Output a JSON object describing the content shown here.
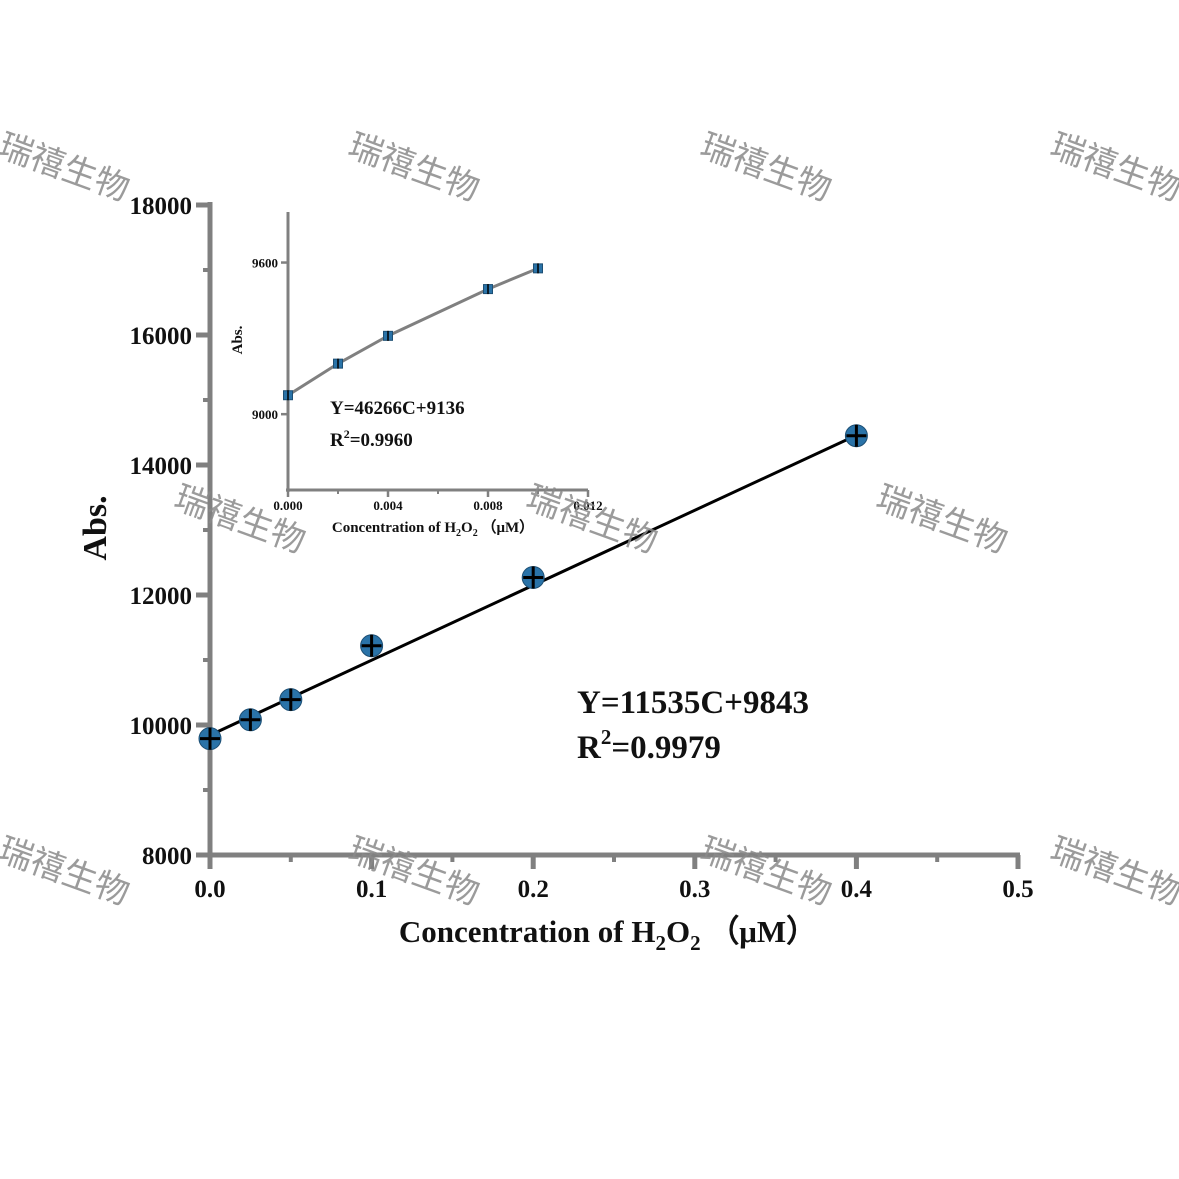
{
  "watermark": {
    "text": "瑞禧生物",
    "color": "#8a8a8a"
  },
  "chart_data": [
    {
      "type": "scatter",
      "title": "",
      "xlabel": "Concentration of H2O2 (μM)",
      "xlabel_parts": [
        "Concentration of H",
        "2",
        "O",
        "2",
        "（μM）"
      ],
      "ylabel": "Abs.",
      "xlim": [
        0,
        0.5
      ],
      "ylim": [
        8000,
        18000
      ],
      "x_ticks": [
        0,
        0.1,
        0.2,
        0.3,
        0.4,
        0.5
      ],
      "x_tick_labels": [
        "0.0",
        "0.1",
        "0.2",
        "0.3",
        "0.4",
        "0.5"
      ],
      "y_ticks": [
        8000,
        10000,
        12000,
        14000,
        16000,
        18000
      ],
      "y_tick_labels": [
        "8000",
        "10000",
        "12000",
        "14000",
        "16000",
        "18000"
      ],
      "grid": false,
      "marker_color": "#2a73a8",
      "axis_color": "#808080",
      "series": [
        {
          "x": [
            0,
            0.025,
            0.05,
            0.1,
            0.2,
            0.4
          ],
          "y": [
            9790,
            10080,
            10390,
            11220,
            12270,
            14450
          ]
        }
      ],
      "fit": {
        "slope": 11535,
        "intercept": 9843,
        "x_range": [
          0,
          0.4
        ]
      },
      "annotations": {
        "equation": "Y=11535C+9843",
        "r2_prefix": "R",
        "r2_sup": "2",
        "r2_value": "=0.9979"
      }
    },
    {
      "type": "line",
      "title": "",
      "xlabel": "Concentration of H2O2 (μM)",
      "xlabel_parts": [
        "Concentration of H",
        "2",
        "O",
        "2",
        "（μM）"
      ],
      "ylabel": "Abs.",
      "xlim": [
        0,
        0.012
      ],
      "ylim": [
        8700,
        9800
      ],
      "x_ticks": [
        0,
        0.004,
        0.008,
        0.012
      ],
      "x_tick_labels": [
        "0.000",
        "0.004",
        "0.008",
        "0.012"
      ],
      "y_ticks": [
        9000,
        9600
      ],
      "y_tick_labels": [
        "9000",
        "9600"
      ],
      "grid": false,
      "marker_color": "#2a73a8",
      "line_color": "#808080",
      "axis_color": "#808080",
      "series": [
        {
          "x": [
            0,
            0.002,
            0.004,
            0.008,
            0.01
          ],
          "y": [
            9075,
            9200,
            9310,
            9495,
            9577
          ]
        }
      ],
      "annotations": {
        "equation": "Y=46266C+9136",
        "r2_prefix": "R",
        "r2_sup": "2",
        "r2_value": "=0.9960"
      }
    }
  ]
}
